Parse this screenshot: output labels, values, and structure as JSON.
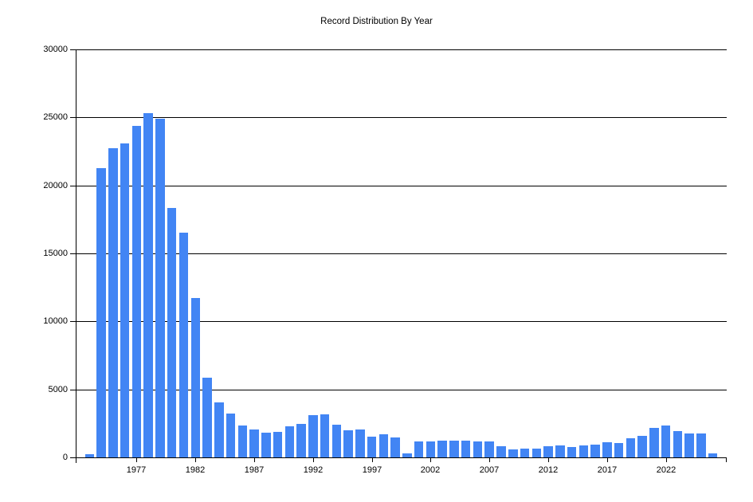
{
  "chart_data": {
    "type": "bar",
    "title": "Record Distribution By Year",
    "xlabel": "",
    "ylabel": "",
    "x": [
      1973,
      1974,
      1975,
      1976,
      1977,
      1978,
      1979,
      1980,
      1981,
      1982,
      1983,
      1984,
      1985,
      1986,
      1987,
      1988,
      1989,
      1990,
      1991,
      1992,
      1993,
      1994,
      1995,
      1996,
      1997,
      1998,
      1999,
      2000,
      2001,
      2002,
      2003,
      2004,
      2005,
      2006,
      2007,
      2008,
      2009,
      2010,
      2011,
      2012,
      2013,
      2014,
      2015,
      2016,
      2017,
      2018,
      2019,
      2020,
      2021,
      2022,
      2023,
      2024,
      2025,
      2026
    ],
    "values": [
      220,
      21270,
      22750,
      23090,
      24360,
      25300,
      24900,
      18320,
      16540,
      11700,
      5880,
      4060,
      3220,
      2330,
      2050,
      1800,
      1860,
      2270,
      2480,
      3130,
      3180,
      2390,
      2010,
      2030,
      1510,
      1680,
      1470,
      300,
      1150,
      1190,
      1210,
      1230,
      1210,
      1170,
      1190,
      820,
      570,
      630,
      650,
      840,
      900,
      740,
      900,
      940,
      1110,
      1040,
      1390,
      1610,
      2140,
      2360,
      1950,
      1770,
      1760,
      310
    ],
    "ylim": [
      0,
      30000
    ],
    "ytick_interval": 5000,
    "ytick_labels": [
      "0",
      "5000",
      "10000",
      "15000",
      "20000",
      "25000",
      "30000"
    ],
    "xtick_labels": [
      "1977",
      "1982",
      "1987",
      "1992",
      "1997",
      "2002",
      "2007",
      "2012",
      "2017",
      "2022"
    ],
    "grid": true,
    "legend_position": "none",
    "bar_color": "#4285F4",
    "axis_color": "#000000",
    "text_color": "#000000"
  }
}
